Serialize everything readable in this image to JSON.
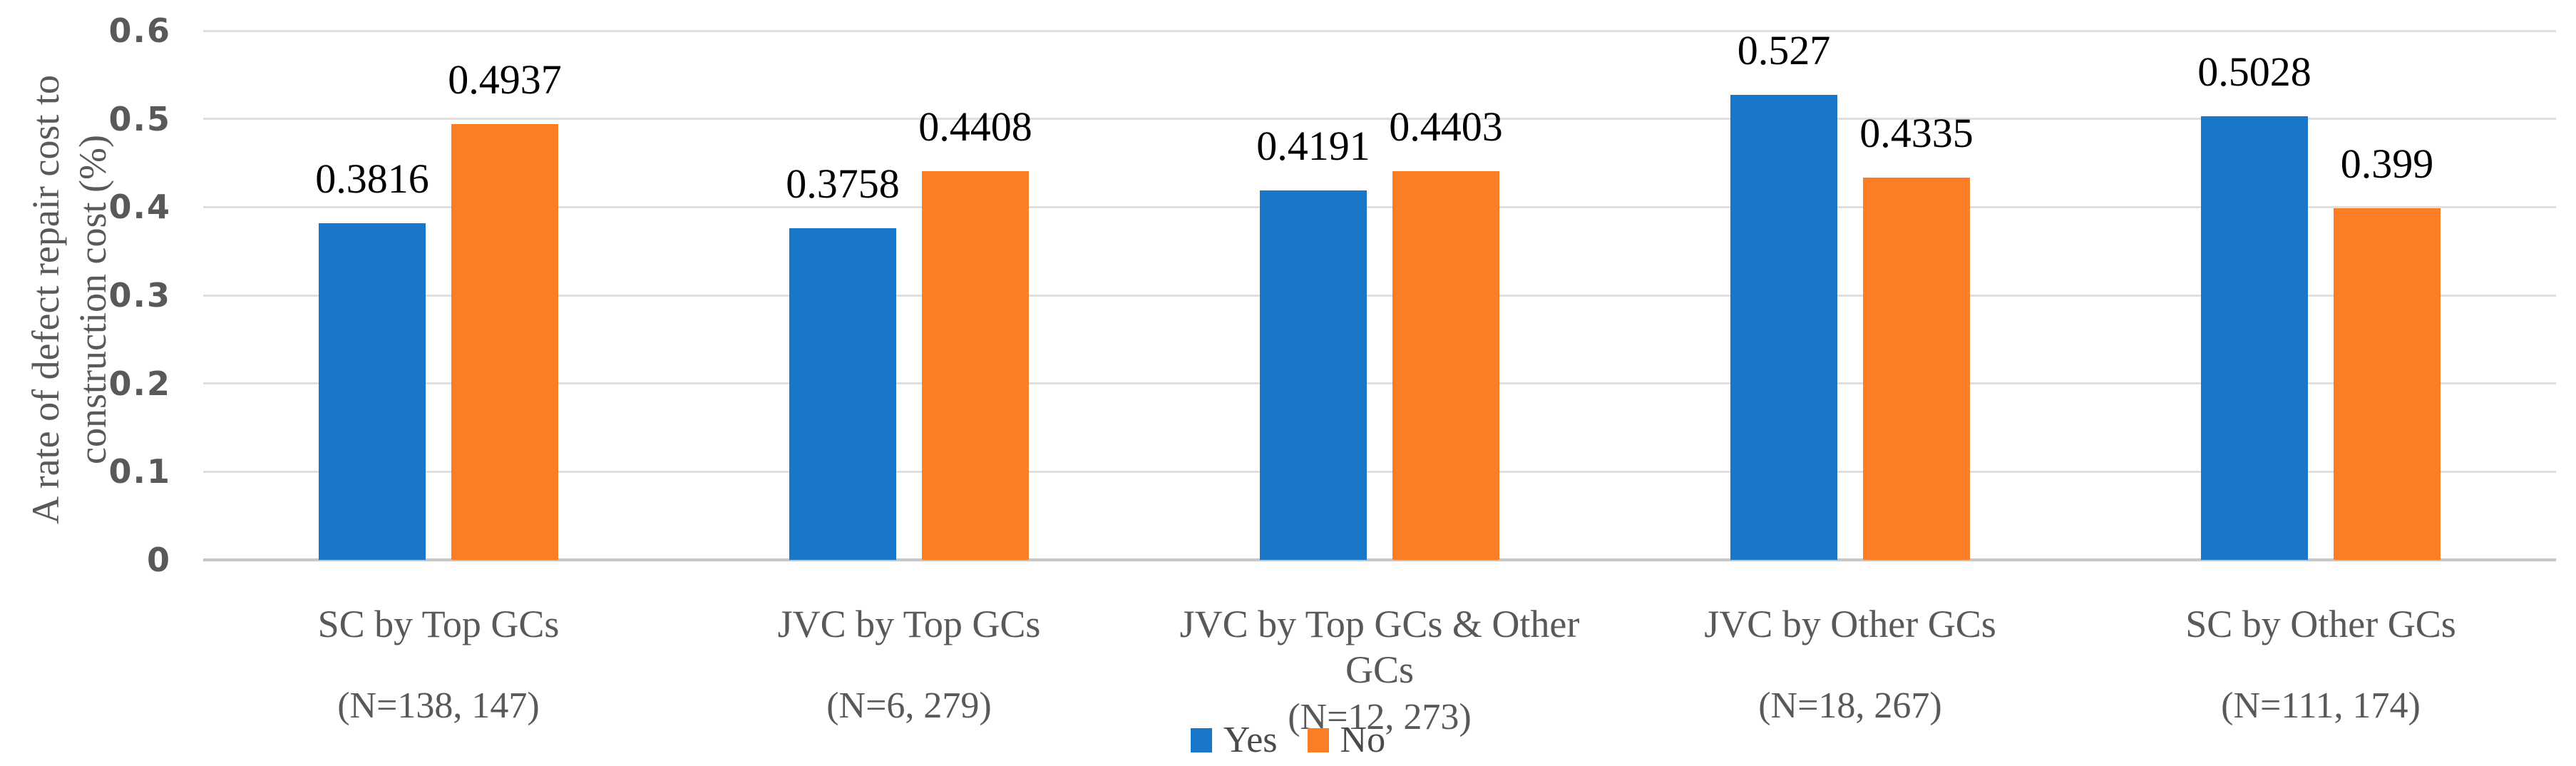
{
  "chart_data": {
    "type": "bar",
    "title": "",
    "ylabel_lines": [
      "A rate of defect repair cost to",
      "construction cost (%)"
    ],
    "ylabel": "A rate of defect repair cost to construction cost (%)",
    "xlabel": "",
    "ylim": [
      0,
      0.6
    ],
    "grid": true,
    "legend_position": "bottom-center",
    "yticks": [
      "0.6",
      "0.5",
      "0.4",
      "0.3",
      "0.2",
      "0.1",
      "0"
    ],
    "ytick_values": [
      0.6,
      0.5,
      0.4,
      0.3,
      0.2,
      0.1,
      0
    ],
    "categories": [
      {
        "lines": [
          "SC by Top GCs"
        ],
        "n": "(N=138, 147)"
      },
      {
        "lines": [
          "JVC by Top GCs"
        ],
        "n": "(N=6, 279)"
      },
      {
        "lines": [
          "JVC by Top GCs & Other",
          "GCs"
        ],
        "n": "(N=12, 273)"
      },
      {
        "lines": [
          "JVC by Other GCs"
        ],
        "n": "(N=18, 267)"
      },
      {
        "lines": [
          "SC by Other GCs"
        ],
        "n": "(N=111, 174)"
      }
    ],
    "series": [
      {
        "name": "Yes",
        "color": "#1976C8",
        "values": [
          0.3816,
          0.3758,
          0.4191,
          0.527,
          0.5028
        ],
        "labels": [
          "0.3816",
          "0.3758",
          "0.4191",
          "0.527",
          "0.5028"
        ]
      },
      {
        "name": "No",
        "color": "#FB7D26",
        "values": [
          0.4937,
          0.4408,
          0.4403,
          0.4335,
          0.399
        ],
        "labels": [
          "0.4937",
          "0.4408",
          "0.4403",
          "0.4335",
          "0.399"
        ]
      }
    ],
    "colors": {
      "grid": "#DFDFDF",
      "axis_baseline": "#C6C6C6",
      "tick_text": "#595959",
      "category_text": "#595959",
      "value_text": "#000000"
    }
  }
}
